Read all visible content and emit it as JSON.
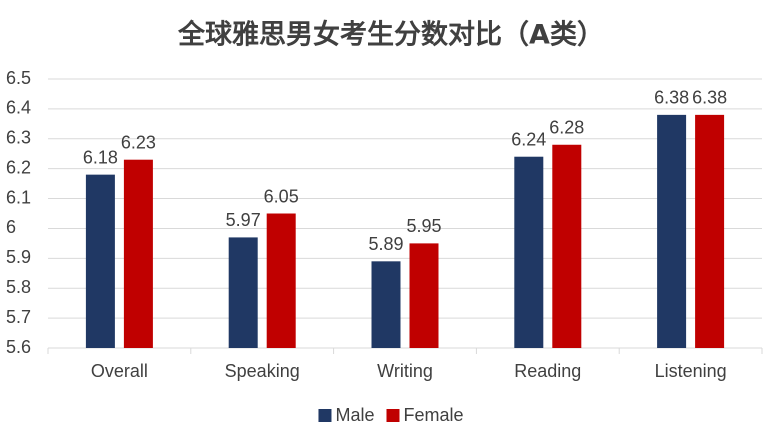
{
  "chart_data": {
    "type": "bar",
    "title": "全球雅思男女考生分数对比（A类）",
    "categories": [
      "Overall",
      "Speaking",
      "Writing",
      "Reading",
      "Listening"
    ],
    "series": [
      {
        "name": "Male",
        "color": "#203864",
        "values": [
          6.18,
          5.97,
          5.89,
          6.24,
          6.38
        ]
      },
      {
        "name": "Female",
        "color": "#c00000",
        "values": [
          6.23,
          6.05,
          5.95,
          6.28,
          6.38
        ]
      }
    ],
    "ylim": [
      5.6,
      6.5
    ],
    "yticks": [
      5.6,
      5.7,
      5.8,
      5.9,
      6,
      6.1,
      6.2,
      6.3,
      6.4,
      6.5
    ],
    "grid": true
  }
}
